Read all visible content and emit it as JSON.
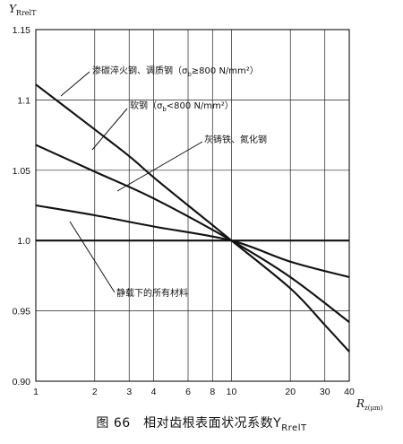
{
  "chart_data": {
    "type": "line",
    "title": "",
    "ylabel": "Y_RrelT",
    "ylabel_main": "Y",
    "ylabel_sub": "RrelT",
    "xlabel": "R_z(μm)",
    "xlabel_main": "R",
    "xlabel_sub": "z(μm)",
    "xscale": "log",
    "xlim": [
      1,
      40
    ],
    "ylim": [
      0.9,
      1.15
    ],
    "grid": true,
    "x_ticks": [
      1,
      2,
      3,
      4,
      6,
      8,
      10,
      20,
      30,
      40
    ],
    "x_tick_labels": [
      "1",
      "2",
      "3",
      "4",
      "6",
      "8",
      "10",
      "20",
      "30",
      "40"
    ],
    "y_ticks": [
      0.9,
      0.95,
      1.0,
      1.05,
      1.1,
      1.15
    ],
    "y_tick_labels": [
      "0.90",
      "0.95",
      "1.0",
      "1.05",
      "1.1",
      "1.15"
    ],
    "series": [
      {
        "name": "渗碳淬火钢、调质钢（σb≥800 N/mm²）",
        "x": [
          1,
          2,
          3,
          4,
          6,
          8,
          10,
          20,
          30,
          40
        ],
        "y": [
          1.111,
          1.079,
          1.06,
          1.045,
          1.025,
          1.011,
          1.0,
          0.966,
          0.94,
          0.921
        ]
      },
      {
        "name": "软钢（σb<800 N/mm²）",
        "x": [
          1,
          2,
          4,
          10,
          20,
          40
        ],
        "y": [
          1.068,
          1.049,
          1.03,
          1.0,
          0.974,
          0.942
        ]
      },
      {
        "name": "灰铸铁、氮化钢",
        "x": [
          1,
          2,
          4,
          10,
          20,
          40
        ],
        "y": [
          1.025,
          1.018,
          1.01,
          1.0,
          0.985,
          0.974
        ]
      },
      {
        "name": "静载下的所有材料",
        "x": [
          1,
          40
        ],
        "y": [
          1.0,
          1.0
        ]
      }
    ],
    "annotations": [
      {
        "text": "渗碳淬火钢、调质钢（σ",
        "sub": "b",
        "tail": "≥800 N/mm²）"
      },
      {
        "text": "软钢（σ",
        "sub": "b",
        "tail": "<800 N/mm²）"
      },
      {
        "text": "灰铸铁、氮化钢",
        "sub": "",
        "tail": ""
      },
      {
        "text": "静载下的所有材料",
        "sub": "",
        "tail": ""
      }
    ]
  },
  "caption": "图 66　相对齿根表面状况系数Y",
  "caption_sub": "RrelT"
}
